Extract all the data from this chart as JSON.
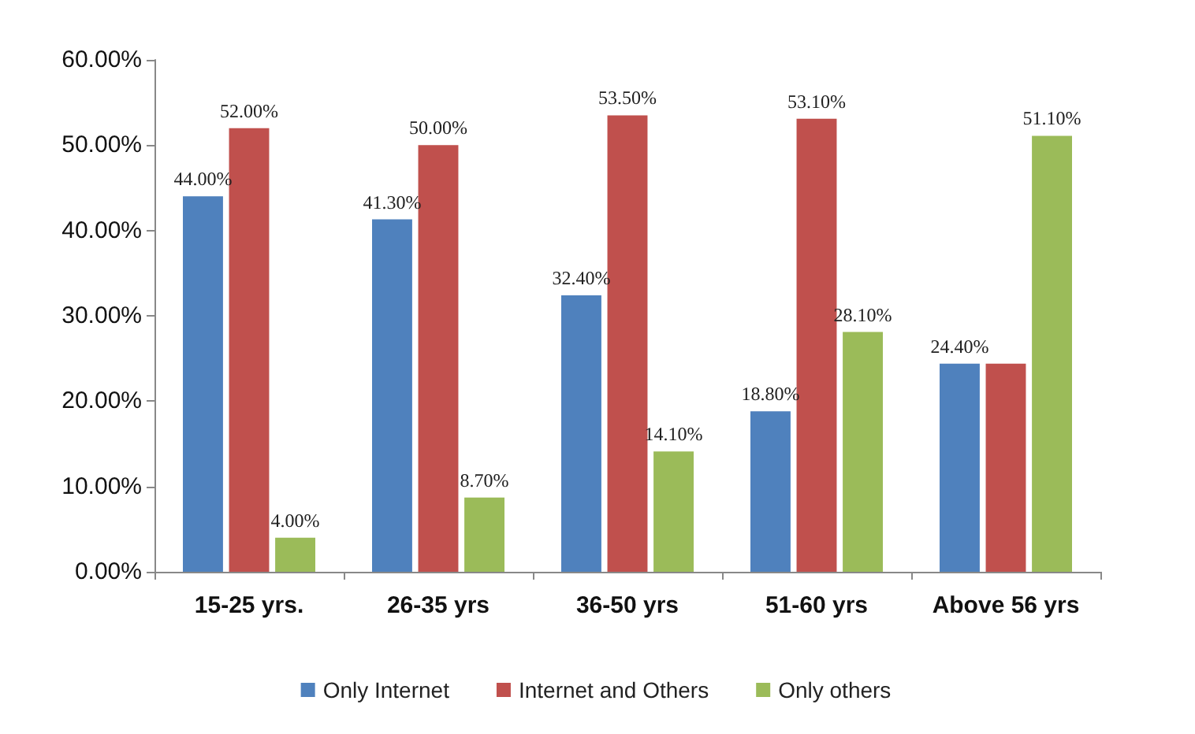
{
  "chart_data": {
    "type": "bar",
    "categories": [
      "15-25 yrs.",
      "26-35 yrs",
      "36-50 yrs",
      "51-60 yrs",
      "Above 56 yrs"
    ],
    "series": [
      {
        "name": "Only Internet",
        "color": "#4f81bd",
        "values": [
          44.0,
          41.3,
          32.4,
          18.8,
          24.4
        ],
        "value_labels": [
          "44.00%",
          "41.30%",
          "32.40%",
          "18.80%",
          "24.40%"
        ]
      },
      {
        "name": "Internet and Others",
        "color": "#c0504d",
        "values": [
          52.0,
          50.0,
          53.5,
          53.1,
          24.4
        ],
        "value_labels": [
          "52.00%",
          "50.00%",
          "53.50%",
          "53.10%",
          null
        ]
      },
      {
        "name": "Only others",
        "color": "#9bbb59",
        "values": [
          4.0,
          8.7,
          14.1,
          28.1,
          51.1
        ],
        "value_labels": [
          "4.00%",
          "8.70%",
          "14.10%",
          "28.10%",
          "51.10%"
        ]
      }
    ],
    "ylim": [
      0,
      60
    ],
    "yticks": [
      {
        "value": 0,
        "label": "0.00%"
      },
      {
        "value": 10,
        "label": "10.00%"
      },
      {
        "value": 20,
        "label": "20.00%"
      },
      {
        "value": 30,
        "label": "30.00%"
      },
      {
        "value": 40,
        "label": "40.00%"
      },
      {
        "value": 50,
        "label": "50.00%"
      },
      {
        "value": 60,
        "label": "60.00%"
      }
    ],
    "grid": false,
    "legend": "bottom"
  }
}
